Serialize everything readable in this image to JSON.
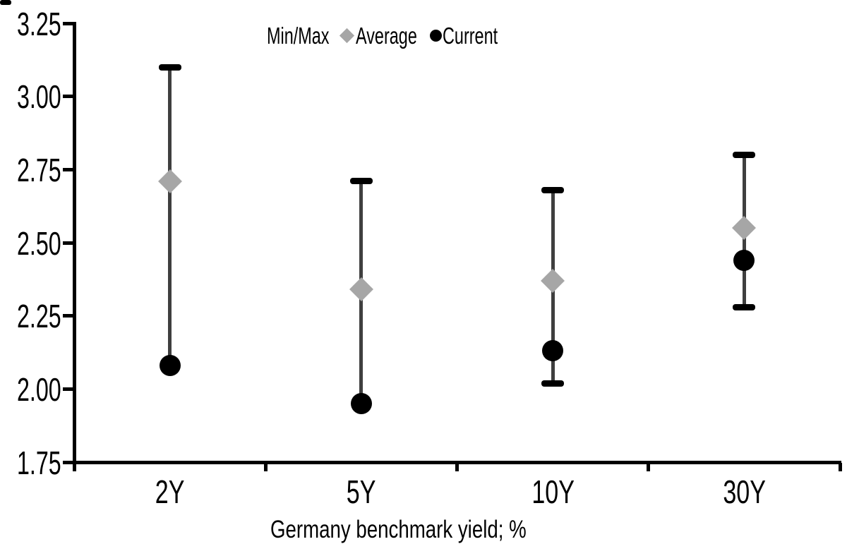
{
  "chart_data": {
    "type": "scatter",
    "subtype": "min-max-range-with-markers",
    "categories": [
      "2Y",
      "5Y",
      "10Y",
      "30Y"
    ],
    "series": [
      {
        "name": "Min/Max",
        "marker": "minmax-dash",
        "max": [
          3.1,
          2.71,
          2.68,
          2.8
        ],
        "min": [
          2.08,
          1.95,
          2.02,
          2.28
        ]
      },
      {
        "name": "Average",
        "marker": "diamond",
        "values": [
          2.71,
          2.34,
          2.37,
          2.55
        ]
      },
      {
        "name": "Current",
        "marker": "circle",
        "values": [
          2.08,
          1.95,
          2.13,
          2.44
        ]
      }
    ],
    "title": "",
    "xlabel": "Germany benchmark yield; %",
    "ylabel": "",
    "ylim": [
      1.75,
      3.25
    ],
    "ytick_step": 0.25,
    "ytick_labels": [
      "3.25",
      "3.00",
      "2.75",
      "2.50",
      "2.25",
      "2.00",
      "1.75"
    ],
    "grid": false,
    "legend_position": "top-center"
  },
  "colors": {
    "background": "#ffffff",
    "axis": "#000000",
    "text": "#000000",
    "range_line": "#3f3f3f",
    "minmax_cap": "#000000",
    "average_marker": "#a6a6a6",
    "current_marker": "#000000"
  }
}
